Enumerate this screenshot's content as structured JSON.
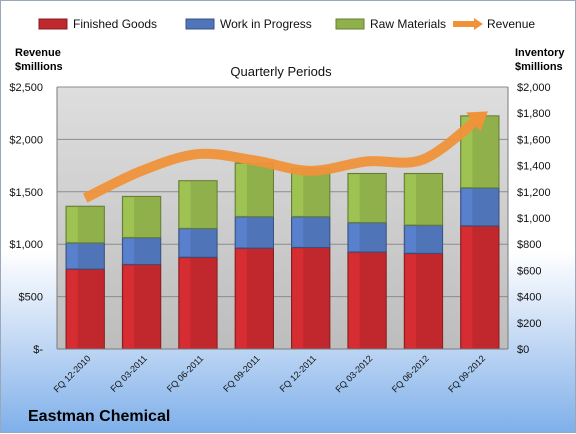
{
  "chart_data": {
    "type": "bar",
    "stacked": true,
    "company": "Eastman Chemical",
    "subtitle": "Quarterly Periods",
    "left_axis": {
      "title_line1": "Revenue",
      "title_line2": "$millions",
      "ylim": [
        0,
        2500
      ],
      "ticks": [
        "$-",
        "$500",
        "$1,000",
        "$1,500",
        "$2,000",
        "$2,500"
      ]
    },
    "right_axis": {
      "title_line1": "Inventory",
      "title_line2": "$millions",
      "ylim": [
        0,
        2000
      ],
      "ticks": [
        "$0",
        "$200",
        "$400",
        "$600",
        "$800",
        "$1,000",
        "$1,200",
        "$1,400",
        "$1,600",
        "$1,800",
        "$2,000"
      ]
    },
    "categories": [
      "FQ 12-2010",
      "FQ 03-2011",
      "FQ 06-2011",
      "FQ 09-2011",
      "FQ 12-2011",
      "FQ 03-2012",
      "FQ 06-2012",
      "FQ 09-2012"
    ],
    "series": [
      {
        "name": "Finished Goods",
        "axis": "right",
        "color": "#c0282d",
        "values": [
          610,
          645,
          700,
          770,
          775,
          740,
          730,
          940
        ]
      },
      {
        "name": "Work in Progress",
        "axis": "right",
        "color": "#4f74b8",
        "values": [
          200,
          205,
          220,
          240,
          235,
          225,
          215,
          290
        ]
      },
      {
        "name": "Raw Materials",
        "axis": "right",
        "color": "#8fb04a",
        "values": [
          280,
          315,
          365,
          410,
          370,
          375,
          395,
          550
        ]
      },
      {
        "name": "Revenue",
        "type": "line",
        "axis": "left",
        "color": "#f0923a",
        "values": [
          1440,
          1700,
          1860,
          1800,
          1700,
          1790,
          1810,
          2210
        ]
      }
    ],
    "grid": true,
    "legend": "top"
  }
}
